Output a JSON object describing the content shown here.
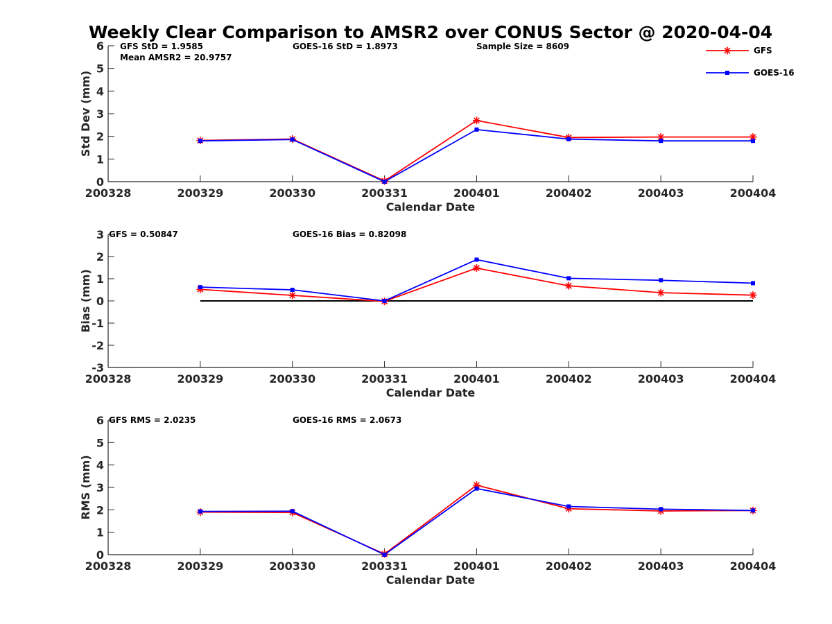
{
  "figure": {
    "title": "Weekly Clear Comparison to AMSR2 over CONUS Sector @ 2020-04-04"
  },
  "legend": {
    "placement": "top-right",
    "entries": [
      {
        "name": "GFS",
        "color": "#ff0000",
        "marker": "asterisk"
      },
      {
        "name": "GOES-16",
        "color": "#0000ff",
        "marker": "square"
      }
    ]
  },
  "chart_data": [
    {
      "type": "line",
      "id": "std",
      "xlabel": "Calendar Date",
      "ylabel": "Std Dev (mm)",
      "x": [
        "200328",
        "200329",
        "200330",
        "200331",
        "200401",
        "200402",
        "200403",
        "200404"
      ],
      "ylim": [
        0,
        6
      ],
      "yticks": [
        "0",
        "1",
        "2",
        "3",
        "4",
        "5",
        "6"
      ],
      "grid": false,
      "annotations": [
        "GFS StD = 1.9585",
        "GOES-16 StD = 1.8973",
        "Sample Size = 8609",
        "Mean AMSR2 = 20.9757"
      ],
      "series": [
        {
          "name": "GFS",
          "color": "#ff0000",
          "marker": "asterisk",
          "points": [
            [
              "200329",
              1.82
            ],
            [
              "200330",
              1.88
            ],
            [
              "200331",
              0.03
            ],
            [
              "200401",
              2.7
            ],
            [
              "200402",
              1.95
            ],
            [
              "200403",
              1.97
            ],
            [
              "200404",
              1.97
            ]
          ]
        },
        {
          "name": "GOES-16",
          "color": "#0000ff",
          "marker": "square",
          "points": [
            [
              "200329",
              1.8
            ],
            [
              "200330",
              1.86
            ],
            [
              "200331",
              0.0
            ],
            [
              "200401",
              2.3
            ],
            [
              "200402",
              1.88
            ],
            [
              "200403",
              1.8
            ],
            [
              "200404",
              1.8
            ]
          ]
        }
      ]
    },
    {
      "type": "line",
      "id": "bias",
      "xlabel": "Calendar Date",
      "ylabel": "Bias (mm)",
      "x": [
        "200328",
        "200329",
        "200330",
        "200331",
        "200401",
        "200402",
        "200403",
        "200404"
      ],
      "ylim": [
        -3,
        3
      ],
      "yticks": [
        "-3",
        "-2",
        "-1",
        "0",
        "1",
        "2",
        "3"
      ],
      "grid": false,
      "reference_line": {
        "y": 0,
        "from": "200329",
        "to": "200404",
        "color": "#000000"
      },
      "annotations": [
        "GFS = 0.50847",
        "GOES-16 Bias  = 0.82098"
      ],
      "series": [
        {
          "name": "GFS",
          "color": "#ff0000",
          "marker": "asterisk",
          "points": [
            [
              "200329",
              0.52
            ],
            [
              "200330",
              0.25
            ],
            [
              "200331",
              -0.02
            ],
            [
              "200401",
              1.48
            ],
            [
              "200402",
              0.68
            ],
            [
              "200403",
              0.37
            ],
            [
              "200404",
              0.26
            ]
          ]
        },
        {
          "name": "GOES-16",
          "color": "#0000ff",
          "marker": "square",
          "points": [
            [
              "200329",
              0.62
            ],
            [
              "200330",
              0.5
            ],
            [
              "200331",
              0.0
            ],
            [
              "200401",
              1.86
            ],
            [
              "200402",
              1.02
            ],
            [
              "200403",
              0.93
            ],
            [
              "200404",
              0.8
            ]
          ]
        }
      ]
    },
    {
      "type": "line",
      "id": "rms",
      "xlabel": "Calendar Date",
      "ylabel": "RMS (mm)",
      "x": [
        "200328",
        "200329",
        "200330",
        "200331",
        "200401",
        "200402",
        "200403",
        "200404"
      ],
      "ylim": [
        0,
        6
      ],
      "yticks": [
        "0",
        "1",
        "2",
        "3",
        "4",
        "5",
        "6"
      ],
      "grid": false,
      "annotations": [
        "GFS RMS = 2.0235",
        "GOES-16 RMS = 2.0673"
      ],
      "series": [
        {
          "name": "GFS",
          "color": "#ff0000",
          "marker": "asterisk",
          "points": [
            [
              "200329",
              1.9
            ],
            [
              "200330",
              1.88
            ],
            [
              "200331",
              0.03
            ],
            [
              "200401",
              3.1
            ],
            [
              "200402",
              2.05
            ],
            [
              "200403",
              1.95
            ],
            [
              "200404",
              1.97
            ]
          ]
        },
        {
          "name": "GOES-16",
          "color": "#0000ff",
          "marker": "square",
          "points": [
            [
              "200329",
              1.93
            ],
            [
              "200330",
              1.94
            ],
            [
              "200331",
              0.0
            ],
            [
              "200401",
              2.95
            ],
            [
              "200402",
              2.15
            ],
            [
              "200403",
              2.03
            ],
            [
              "200404",
              1.97
            ]
          ]
        }
      ]
    }
  ]
}
